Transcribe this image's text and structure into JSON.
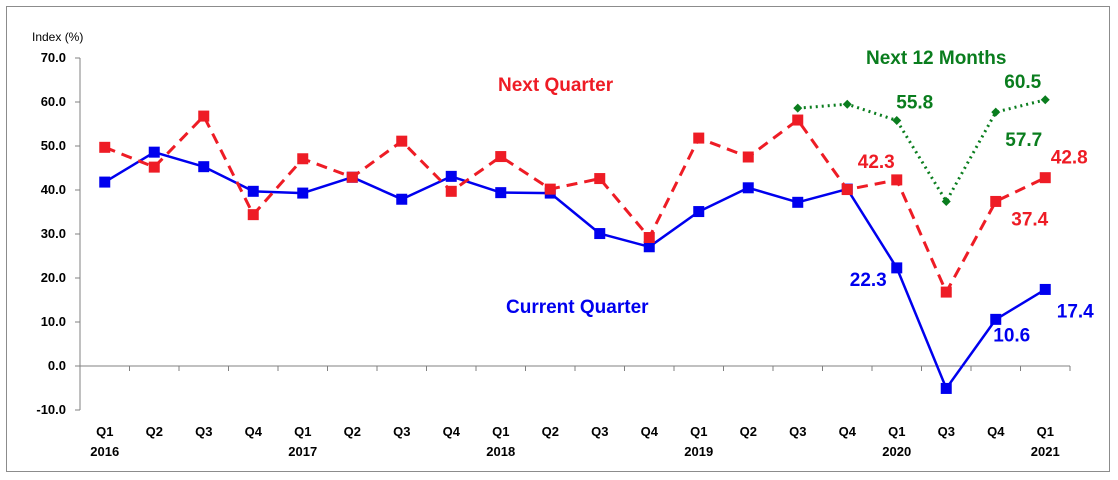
{
  "chart_data": {
    "type": "line",
    "ylabel": "Index (%)",
    "ylim": [
      -10,
      70
    ],
    "yticks": [
      "70.0",
      "60.0",
      "50.0",
      "40.0",
      "30.0",
      "20.0",
      "10.0",
      "0.0",
      "-10.0"
    ],
    "ytick_values": [
      70,
      60,
      50,
      40,
      30,
      20,
      10,
      0,
      -10
    ],
    "x_quarters": [
      "Q1",
      "Q2",
      "Q3",
      "Q4",
      "Q1",
      "Q2",
      "Q3",
      "Q4",
      "Q1",
      "Q2",
      "Q3",
      "Q4",
      "Q1",
      "Q2",
      "Q3",
      "Q4",
      "Q1",
      "Q3",
      "Q4",
      "Q1"
    ],
    "x_years": [
      "2016",
      "",
      "",
      "",
      "2017",
      "",
      "",
      "",
      "2018",
      "",
      "",
      "",
      "2019",
      "",
      "",
      "",
      "2020",
      "",
      "",
      "2021"
    ],
    "series": [
      {
        "name": "Current Quarter",
        "color": "#0000ee",
        "style": "solid",
        "marker": "square",
        "values": [
          41.8,
          48.6,
          45.3,
          39.7,
          39.3,
          42.9,
          37.9,
          43.1,
          39.4,
          39.3,
          30.1,
          27.1,
          35.1,
          40.5,
          37.2,
          40.2,
          22.3,
          -5.1,
          10.6,
          17.4
        ]
      },
      {
        "name": "Next Quarter",
        "color": "#ee1c25",
        "style": "dashed",
        "marker": "square",
        "values": [
          49.7,
          45.2,
          56.8,
          34.4,
          47.1,
          42.9,
          51.1,
          39.7,
          47.6,
          40.2,
          42.6,
          29.2,
          51.8,
          47.5,
          55.9,
          40.1,
          42.3,
          16.8,
          37.4,
          42.8
        ]
      },
      {
        "name": "Next 12 Months",
        "color": "#0a7d1e",
        "style": "dotted",
        "marker": "diamond",
        "values": [
          null,
          null,
          null,
          null,
          null,
          null,
          null,
          null,
          null,
          null,
          null,
          null,
          null,
          null,
          58.6,
          59.5,
          55.8,
          37.4,
          57.7,
          60.5
        ]
      }
    ],
    "data_labels": [
      {
        "series": 0,
        "index": 16,
        "text": "22.3"
      },
      {
        "series": 0,
        "index": 18,
        "text": "10.6"
      },
      {
        "series": 0,
        "index": 19,
        "text": "17.4"
      },
      {
        "series": 1,
        "index": 16,
        "text": "42.3"
      },
      {
        "series": 1,
        "index": 18,
        "text": "37.4"
      },
      {
        "series": 1,
        "index": 19,
        "text": "42.8"
      },
      {
        "series": 2,
        "index": 16,
        "text": "55.8"
      },
      {
        "series": 2,
        "index": 18,
        "text": "57.7"
      },
      {
        "series": 2,
        "index": 19,
        "text": "60.5"
      }
    ],
    "grid": false,
    "legend": "inline labels"
  }
}
